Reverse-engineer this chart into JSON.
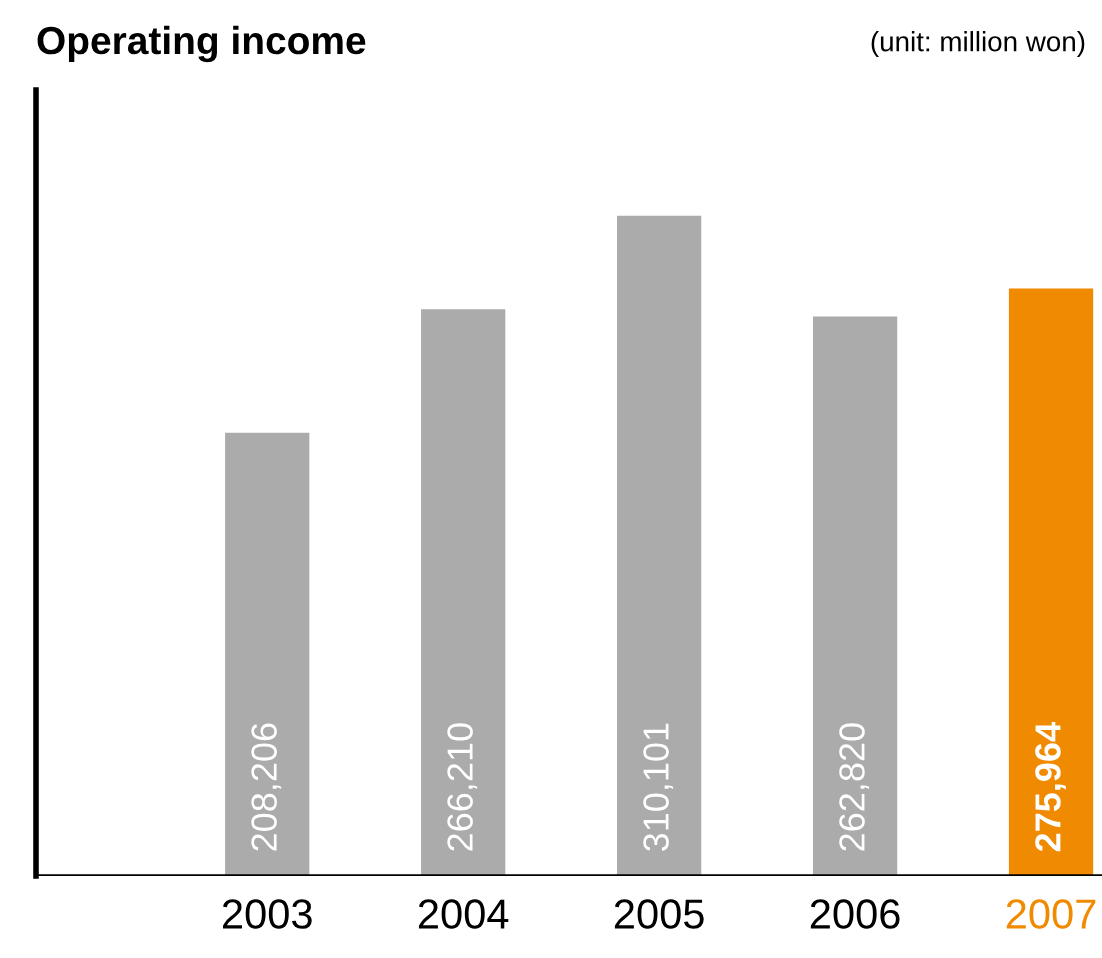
{
  "chart_data": {
    "type": "bar",
    "title": "Operating income",
    "annotations": [
      "(unit: million won)"
    ],
    "categories": [
      "2003",
      "2004",
      "2005",
      "2006",
      "2007"
    ],
    "values": [
      208206,
      266210,
      310101,
      262820,
      275964
    ],
    "colors": [
      "#ababab",
      "#ababab",
      "#ababab",
      "#ababab",
      "#f08a00"
    ],
    "value_labels": [
      "208,206",
      "266,210",
      "310,101",
      "262,820",
      "275,964"
    ],
    "tick_labels": "x",
    "grid": false,
    "legend": false
  }
}
